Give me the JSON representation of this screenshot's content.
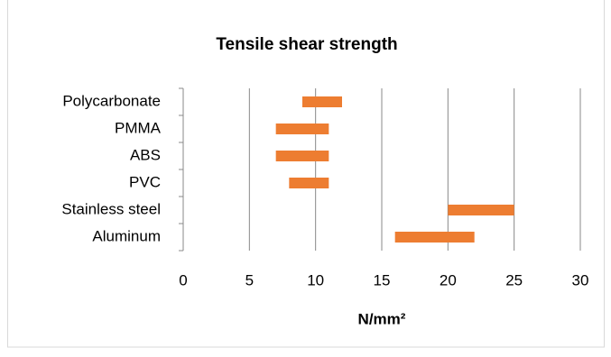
{
  "chart_data": {
    "type": "floating-bar",
    "title": "Tensile shear strength",
    "x_label": "N/mm²",
    "categories": [
      "Polycarbonate",
      "PMMA",
      "ABS",
      "PVC",
      "Stainless steel",
      "Aluminum"
    ],
    "low": [
      9,
      7,
      7,
      8,
      20,
      16
    ],
    "high": [
      12,
      11,
      11,
      11,
      25,
      22
    ],
    "color": "#ed7d31",
    "xlim": [
      0,
      30
    ],
    "xticks": [
      0,
      5,
      10,
      15,
      20,
      25,
      30
    ],
    "grid": true
  }
}
